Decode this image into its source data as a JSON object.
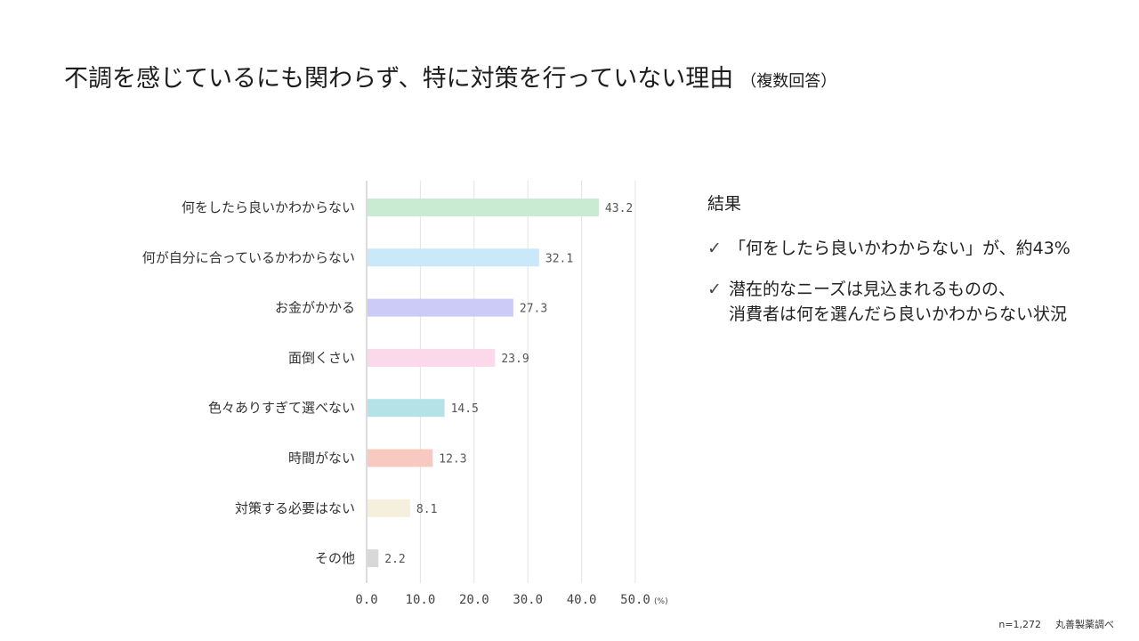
{
  "title": "不調を感じているにも関わらず、特に対策を行っていない理由",
  "subtitle": "（複数回答）",
  "chart_data": {
    "type": "bar",
    "orientation": "horizontal",
    "categories": [
      "何をしたら良いかわからない",
      "何が自分に合っているかわからない",
      "お金がかかる",
      "面倒くさい",
      "色々ありすぎて選べない",
      "時間がない",
      "対策する必要はない",
      "その他"
    ],
    "values": [
      43.2,
      32.1,
      27.3,
      23.9,
      14.5,
      12.3,
      8.1,
      2.2
    ],
    "value_labels": [
      "43.2",
      "32.1",
      "27.3",
      "23.9",
      "14.5",
      "12.3",
      "8.1",
      "2.2"
    ],
    "colors": [
      "#c8ebd1",
      "#c9e9fa",
      "#cccaf7",
      "#fbd9ea",
      "#b4e2e6",
      "#f8c9c0",
      "#f5efdd",
      "#d8d8d8"
    ],
    "xlim": [
      0,
      50
    ],
    "xticks": [
      0,
      10,
      20,
      30,
      40,
      50
    ],
    "xtick_labels": [
      "0.0",
      "10.0",
      "20.0",
      "30.0",
      "40.0",
      "50.0"
    ],
    "x_unit": "(%)",
    "grid": true,
    "legend": "none"
  },
  "results": {
    "heading": "結果",
    "check_mark": "✓",
    "items": [
      {
        "lines": [
          "「何をしたら良いかわからない」が、約43%"
        ]
      },
      {
        "lines": [
          "潜在的なニーズは見込まれるものの、",
          "消費者は何を選んだら良いかわからない状況"
        ]
      }
    ]
  },
  "footnote": {
    "sample": "n=1,272",
    "source": "丸善製薬調べ"
  }
}
